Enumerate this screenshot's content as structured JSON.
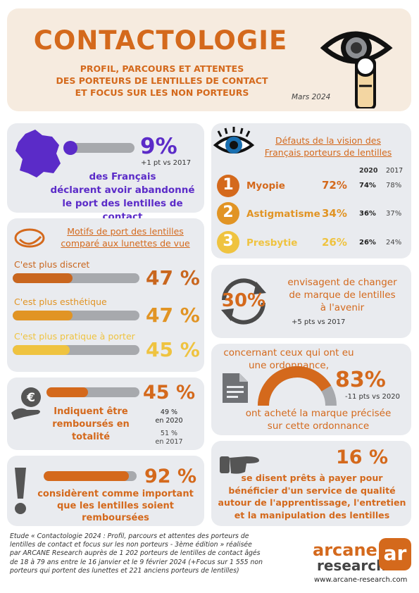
{
  "header": {
    "title": "CONTACTOLOGIE",
    "subtitle_lines": [
      "PROFIL, PARCOURS ET ATTENTES",
      "DES PORTEURS DE LENTILLES DE CONTACT",
      "ET FOCUS SUR LES NON PORTEURS"
    ],
    "date": "Mars 2024"
  },
  "abandon": {
    "value": "9%",
    "progress": 0.09,
    "delta": "+1 pt vs 2017",
    "text_lines": [
      "des Français",
      "déclarent avoir abandonné",
      "le port des lentilles de contact"
    ]
  },
  "vision": {
    "title_lines": [
      "Défauts de la vision des",
      "Français porteurs de lentilles"
    ],
    "year_a": "2020",
    "year_b": "2017",
    "rows": [
      {
        "rank": "1",
        "label": "Myopie",
        "value": "72%",
        "v2020": "74%",
        "v2017": "78%"
      },
      {
        "rank": "2",
        "label": "Astigmatisme",
        "value": "34%",
        "v2020": "36%",
        "v2017": "37%"
      },
      {
        "rank": "3",
        "label": "Presbytie",
        "value": "26%",
        "v2020": "26%",
        "v2017": "24%"
      }
    ]
  },
  "motifs": {
    "title_lines": [
      "Motifs de port des lentilles",
      "comparé aux lunettes de vue"
    ],
    "items": [
      {
        "label": "C'est plus discret",
        "value": "47 %",
        "pct": 47,
        "color": "#c9661e"
      },
      {
        "label": "C'est plus esthétique",
        "value": "47 %",
        "pct": 47,
        "color": "#e19424"
      },
      {
        "label": "C'est plus pratique à porter",
        "value": "45 %",
        "pct": 45,
        "color": "#efc340"
      }
    ]
  },
  "brand_change": {
    "value": "30%",
    "text_lines": [
      "envisagent de changer",
      "de marque de lentilles",
      "à l'avenir"
    ],
    "delta": "+5 pts vs 2017"
  },
  "prescription": {
    "intro_lines": [
      "concernant ceux qui ont eu",
      "une ordonnance,"
    ],
    "value": "83%",
    "progress": 0.83,
    "delta": "-11 pts vs 2020",
    "text_lines": [
      "ont acheté la marque précisée",
      "sur cette ordonnance"
    ]
  },
  "reimbursed": {
    "value": "45 %",
    "progress": 0.45,
    "text_lines": [
      "Indiquent être",
      "remboursés en totalité"
    ],
    "cmp1_lines": [
      "49 %",
      "en 2020"
    ],
    "cmp2_lines": [
      "51 %",
      "en 2017"
    ]
  },
  "important": {
    "value": "92 %",
    "progress": 0.92,
    "text_lines": [
      "considèrent comme important",
      "que les lentilles soient",
      "remboursées"
    ]
  },
  "service": {
    "value": "16 %",
    "text_lines": [
      "se disent prêts à payer pour",
      "bénéficier d'un service de qualité",
      "autour de l'apprentissage, l'entretien",
      "et la manipulation des lentilles"
    ]
  },
  "footer": {
    "study_lines": [
      "Etude « Contactologie 2024 : Profil, parcours et attentes des porteurs de",
      "lentilles de contact et focus sur les non porteurs - 3ème édition » réalisée",
      "par ARCANE Research auprès de 1 202 porteurs de lentilles de contact âgés",
      "de 18 à 79 ans entre le 16 janvier et le 9 février 2024 (+Focus sur 1 555 non",
      "porteurs qui portent des lunettes et 221 anciens porteurs de lentilles)"
    ],
    "brand_line1": "arcane",
    "brand_line2": "research",
    "brand_mark": "ar",
    "website": "www.arcane-research.com"
  },
  "colors": {
    "orange": "#d4691c",
    "purple": "#5b2bc8",
    "card": "#e9ebef",
    "header_bg": "#f6ebdf",
    "bar_gray": "#a7a9ad"
  }
}
